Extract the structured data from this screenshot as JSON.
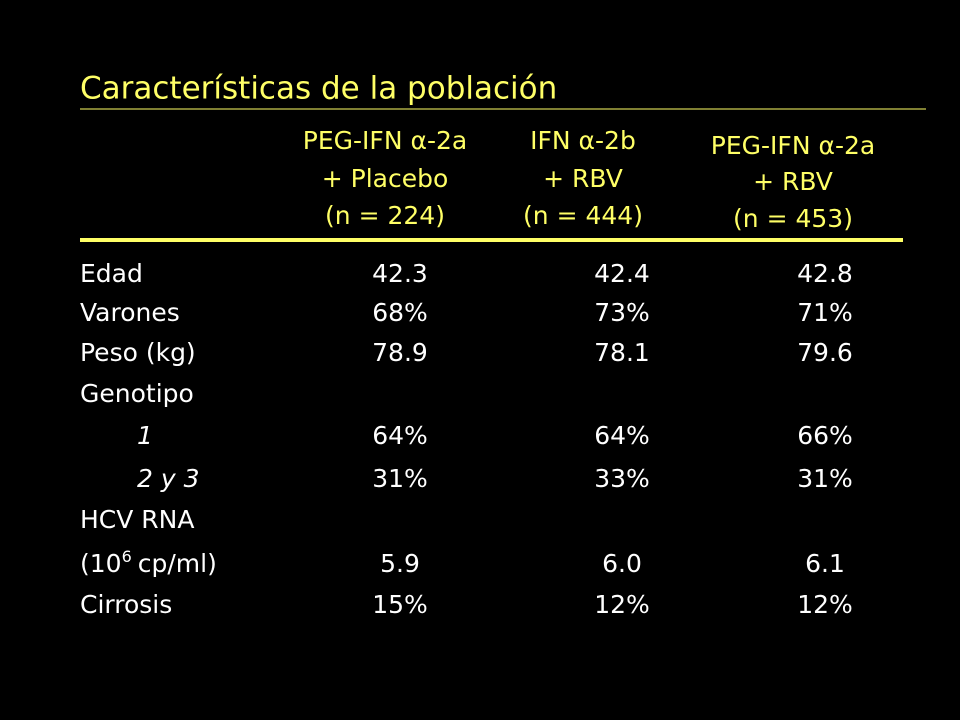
{
  "title": "Características de la población",
  "columns": [
    {
      "lines": [
        "PEG-IFN α-2a",
        "+ Placebo",
        "(n = 224)"
      ]
    },
    {
      "lines": [
        "IFN α-2b",
        "+ RBV",
        "(n = 444)"
      ]
    },
    {
      "lines": [
        "PEG-IFN α-2a",
        "+ RBV",
        "(n = 453)"
      ]
    }
  ],
  "rows": [
    {
      "label": "Edad",
      "values": [
        "42.3",
        "42.4",
        "42.8"
      ]
    },
    {
      "label": "Varones",
      "values": [
        "68%",
        "73%",
        "71%"
      ]
    },
    {
      "label": "Peso (kg)",
      "values": [
        "78.9",
        "78.1",
        "79.6"
      ]
    },
    {
      "label": "Genotipo",
      "subrows": [
        {
          "label": "1",
          "values": [
            "64%",
            "64%",
            "66%"
          ]
        },
        {
          "label": "2 y 3",
          "values": [
            "31%",
            "33%",
            "31%"
          ]
        }
      ]
    },
    {
      "label": "HCV RNA",
      "unit": [
        "(10",
        "6",
        "cp/ml)"
      ],
      "values": [
        "5.9",
        "6.0",
        "6.1"
      ]
    },
    {
      "label": "Cirrosis",
      "values": [
        "15%",
        "12%",
        "12%"
      ]
    }
  ]
}
